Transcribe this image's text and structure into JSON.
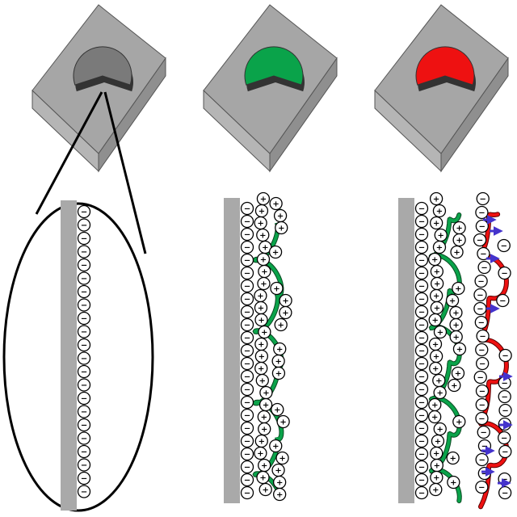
{
  "colors": {
    "block_top": "#a6a6a6",
    "block_side": "#8f8f8f",
    "block_front": "#b5b5b5",
    "block_edge": "#555555",
    "layer_bare": "#7a7a7a",
    "layer_green": "#0aa34a",
    "layer_red": "#ee1111",
    "wall": "#a9a9a9",
    "arrow": "#4433cc"
  },
  "panels": [
    {
      "id": "bare-substrate",
      "coating": "none"
    },
    {
      "id": "green-coated",
      "coating": "green-polymer"
    },
    {
      "id": "red-coated",
      "coating": "red-polymer"
    }
  ],
  "ions": {
    "negative": "−",
    "positive": "+"
  }
}
